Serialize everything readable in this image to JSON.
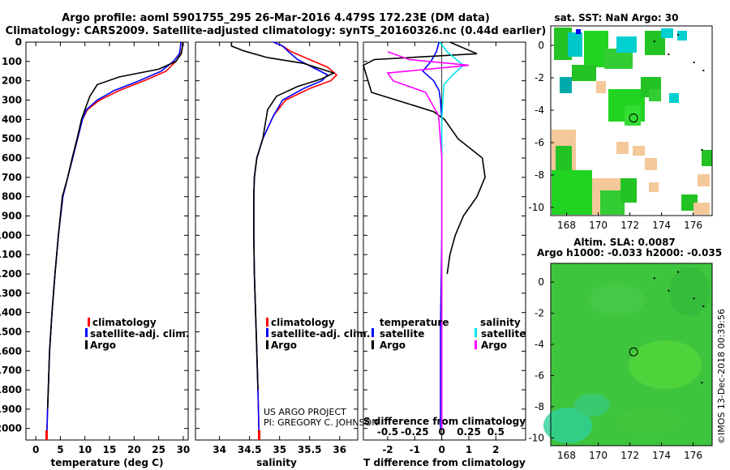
{
  "header": {
    "title_line1": "Argo profile: aoml 5901755_295 26-Mar-2016 4.479S 172.23E (DM data)",
    "title_line2": "Climatology: CARS2009. Satellite-adjusted climatology: synTS_20160326.nc (0.44d earlier)"
  },
  "colors": {
    "climatology": "#ff0000",
    "satellite": "#0000ff",
    "argo": "#000000",
    "sat_salinity": "#00e5ee",
    "argo_salinity": "#ff00ff"
  },
  "depth_axis": {
    "ticks": [
      0,
      100,
      200,
      300,
      400,
      500,
      600,
      700,
      800,
      900,
      1000,
      1100,
      1200,
      1300,
      1400,
      1500,
      1600,
      1700,
      1800,
      1900,
      2000
    ],
    "range": [
      0,
      2060
    ]
  },
  "chart_data": [
    {
      "id": "temperature",
      "type": "line",
      "xlabel": "temperature (deg C)",
      "xlim": [
        -2,
        31
      ],
      "xticks": [
        0,
        5,
        10,
        15,
        20,
        25,
        30
      ],
      "ylim": [
        0,
        2060
      ],
      "legend": [
        "climatology",
        "satellite-adj. clim.",
        "Argo"
      ],
      "series": [
        {
          "name": "climatology",
          "color": "#ff0000",
          "x": [
            29.9,
            29.8,
            29.5,
            28.5,
            26.5,
            22,
            17,
            13,
            10.5,
            9.5,
            8.5,
            7.5,
            6.5,
            5.5,
            4.6,
            3.9,
            3.3,
            2.8,
            2.4,
            2.2
          ],
          "y": [
            0,
            30,
            60,
            100,
            150,
            200,
            250,
            300,
            350,
            400,
            500,
            600,
            700,
            800,
            1000,
            1200,
            1400,
            1600,
            1900,
            2060
          ]
        },
        {
          "name": "satellite-adj. clim.",
          "color": "#0000ff",
          "x": [
            29.5,
            29.4,
            29.2,
            28.0,
            25.5,
            21,
            16,
            12.5,
            10.3,
            9.5,
            8.5,
            7.5,
            6.5,
            5.5,
            4.6,
            3.9,
            3.3,
            2.8,
            2.4,
            2.2
          ],
          "y": [
            0,
            30,
            60,
            100,
            150,
            200,
            250,
            300,
            350,
            400,
            500,
            600,
            700,
            800,
            1000,
            1200,
            1400,
            1600,
            1900,
            2060
          ]
        },
        {
          "name": "Argo",
          "color": "#000000",
          "x": [
            29.9,
            29.8,
            29.6,
            28.5,
            25,
            17,
            12.5,
            11,
            10,
            9.3,
            8.4,
            7.4,
            6.5,
            5.4,
            4.6,
            3.9,
            3.3,
            2.8,
            2.4
          ],
          "y": [
            0,
            30,
            60,
            100,
            140,
            180,
            220,
            280,
            350,
            400,
            500,
            600,
            700,
            800,
            1000,
            1200,
            1400,
            1600,
            1900
          ]
        }
      ]
    },
    {
      "id": "salinity",
      "type": "line",
      "xlabel": "salinity",
      "xlim": [
        33.6,
        36.3
      ],
      "xticks": [
        34,
        34.5,
        35,
        35.5,
        36
      ],
      "ylim": [
        0,
        2060
      ],
      "legend": [
        "climatology",
        "satellite-adj. clim.",
        "Argo"
      ],
      "series": [
        {
          "name": "climatology",
          "color": "#ff0000",
          "x": [
            34.9,
            35.05,
            35.2,
            35.5,
            35.8,
            35.95,
            35.85,
            35.5,
            35.1,
            34.9,
            34.72,
            34.62,
            34.58,
            34.57,
            34.57,
            34.58,
            34.6,
            34.62,
            34.64,
            34.66
          ],
          "y": [
            0,
            20,
            50,
            90,
            130,
            170,
            200,
            240,
            300,
            380,
            500,
            600,
            700,
            800,
            1000,
            1200,
            1400,
            1600,
            1800,
            2060
          ]
        },
        {
          "name": "satellite-adj. clim.",
          "color": "#0000ff",
          "x": [
            34.9,
            35.05,
            35.15,
            35.3,
            35.55,
            35.8,
            35.7,
            35.4,
            35.05,
            34.9,
            34.72,
            34.62,
            34.58,
            34.57,
            34.57,
            34.58,
            34.6,
            34.62,
            34.64,
            34.66
          ],
          "y": [
            0,
            20,
            50,
            90,
            130,
            170,
            200,
            240,
            300,
            380,
            500,
            600,
            700,
            800,
            1000,
            1200,
            1400,
            1600,
            1800,
            2060
          ]
        },
        {
          "name": "Argo",
          "color": "#000000",
          "x": [
            34.2,
            34.2,
            34.4,
            34.8,
            35.4,
            35.9,
            35.7,
            35.3,
            34.95,
            34.8,
            34.72,
            34.62,
            34.58,
            34.57,
            34.57,
            34.58,
            34.6,
            34.62,
            34.64
          ],
          "y": [
            0,
            20,
            45,
            80,
            110,
            160,
            190,
            230,
            280,
            350,
            500,
            600,
            700,
            800,
            1000,
            1200,
            1400,
            1600,
            1800
          ]
        }
      ]
    },
    {
      "id": "difference",
      "type": "line",
      "xlabel": "T difference from climatology",
      "xlabel_top": "S difference from climatology",
      "xlim": [
        -2.9,
        3.1
      ],
      "xticks": [
        -2,
        -1,
        0,
        1,
        2
      ],
      "xticks_top": [
        -0.5,
        -0.25,
        0,
        0.25,
        0.5
      ],
      "ylim": [
        0,
        2060
      ],
      "legend_left_title": "temperature",
      "legend_right_title": "salinity",
      "legend_left": [
        "satellite",
        "Argo"
      ],
      "legend_right": [
        "satellite",
        "Argo"
      ],
      "series": [
        {
          "name": "T satellite",
          "color": "#0000ff",
          "x": [
            -0.1,
            -0.2,
            -0.4,
            -0.7,
            -0.3,
            -0.1,
            -0.05,
            0,
            0,
            0,
            -0.05,
            -0.05
          ],
          "y": [
            0,
            50,
            100,
            150,
            200,
            250,
            300,
            400,
            600,
            1000,
            1500,
            2000
          ]
        },
        {
          "name": "T Argo",
          "color": "#000000",
          "x": [
            0.3,
            1.3,
            -2.5,
            -2.9,
            -2.6,
            -0.3,
            0.1,
            0.6,
            1.5,
            1.6,
            1.3,
            0.8,
            0.5,
            0.3,
            0.2
          ],
          "y": [
            0,
            60,
            90,
            120,
            260,
            360,
            400,
            500,
            600,
            700,
            800,
            900,
            1000,
            1100,
            1200
          ]
        },
        {
          "name": "S satellite",
          "color": "#00e5ee",
          "x": [
            -0.02,
            0.05,
            0.2,
            0.1,
            0.02,
            0.01,
            0,
            0,
            0
          ],
          "y": [
            0,
            50,
            120,
            170,
            220,
            300,
            400,
            800,
            2000
          ]
        },
        {
          "name": "S Argo",
          "color": "#ff00ff",
          "x": [
            -0.5,
            -0.3,
            0.25,
            -0.5,
            -0.45,
            -0.15,
            -0.03,
            0,
            0
          ],
          "y": [
            50,
            90,
            120,
            160,
            200,
            260,
            380,
            600,
            2000
          ]
        }
      ]
    },
    {
      "id": "sst_map",
      "type": "heatmap",
      "title": "sat. SST: NaN Argo: 30",
      "xticks": [
        168,
        170,
        172,
        174,
        176
      ],
      "yticks": [
        0,
        -2,
        -4,
        -6,
        -8,
        -10
      ],
      "xlim": [
        167,
        177.2
      ],
      "ylim": [
        -10.5,
        1.2
      ],
      "profile_location": {
        "lon": 172.23,
        "lat": -4.479
      }
    },
    {
      "id": "sla_map",
      "type": "heatmap",
      "title": "Altim. SLA: 0.0087",
      "subtitle": "Argo h1000: -0.033 h2000: -0.035",
      "xticks": [
        168,
        170,
        172,
        174,
        176
      ],
      "yticks": [
        0,
        -2,
        -4,
        -6,
        -8,
        -10
      ],
      "xlim": [
        167,
        177.2
      ],
      "ylim": [
        -10.5,
        1.2
      ],
      "profile_location": {
        "lon": 172.23,
        "lat": -4.479
      }
    }
  ],
  "credits": {
    "line1": "US ARGO PROJECT",
    "line2": "PI: GREGORY C. JOHNSON"
  },
  "timestamp": "©IMOS 13-Dec-2018 00:39:56"
}
